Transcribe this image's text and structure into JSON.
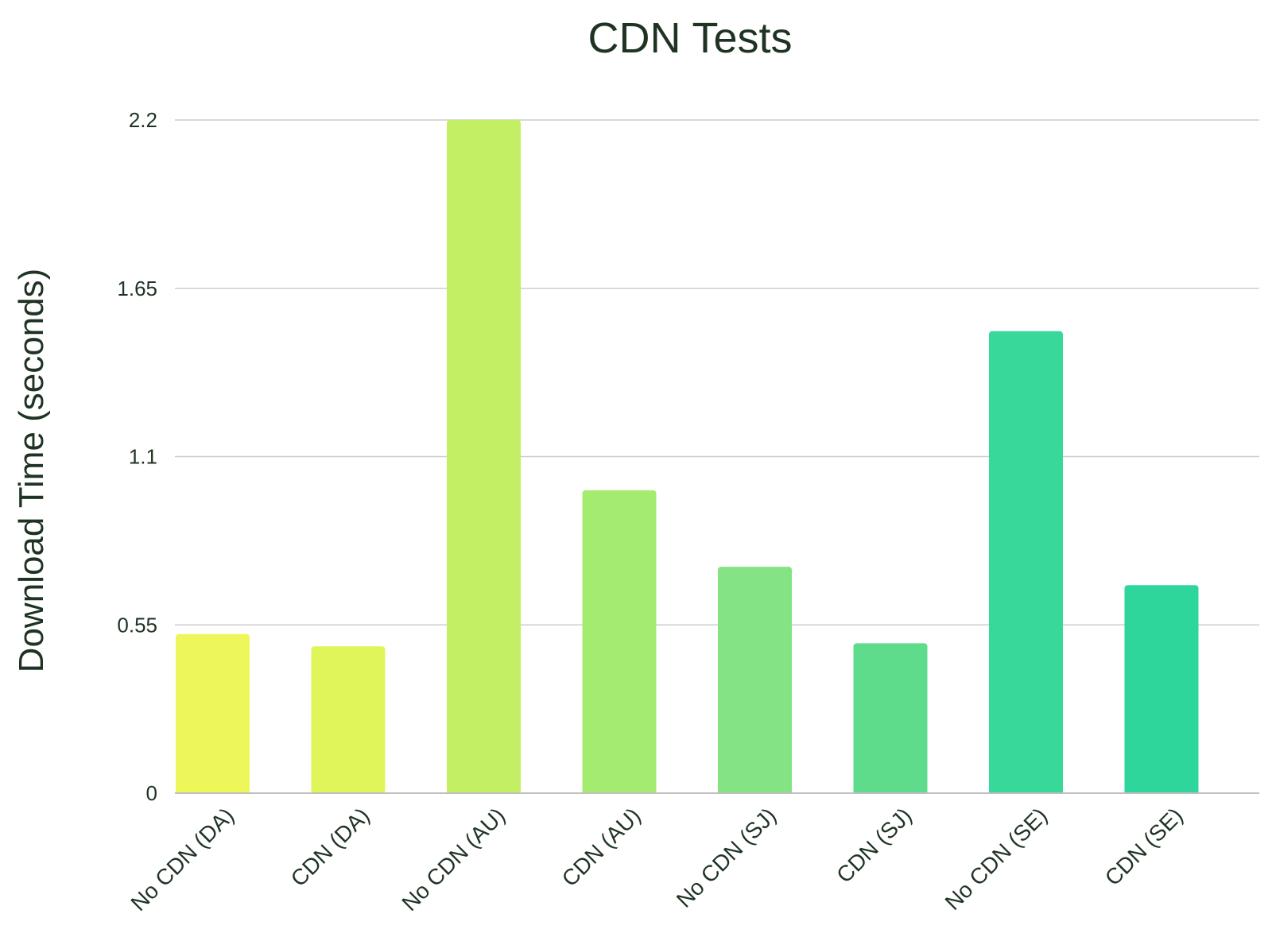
{
  "chart_data": {
    "type": "bar",
    "title": "CDN Tests",
    "xlabel": "",
    "ylabel": "Download Time (seconds)",
    "ylim": [
      0,
      2.2
    ],
    "yticks": [
      "0",
      "0.55",
      "1.1",
      "1.65",
      "2.2"
    ],
    "grid": true,
    "categories": [
      "No CDN (DA)",
      "CDN (DA)",
      "No CDN (AU)",
      "CDN (AU)",
      "No CDN (SJ)",
      "CDN (SJ)",
      "No CDN (SE)",
      "CDN (SE)"
    ],
    "values": [
      0.52,
      0.48,
      2.2,
      0.99,
      0.74,
      0.49,
      1.51,
      0.68
    ],
    "colors": [
      "#eef75a",
      "#e0f55a",
      "#c2ef63",
      "#a4ec70",
      "#84e383",
      "#5fdc8b",
      "#38d79a",
      "#2ed69b"
    ]
  }
}
